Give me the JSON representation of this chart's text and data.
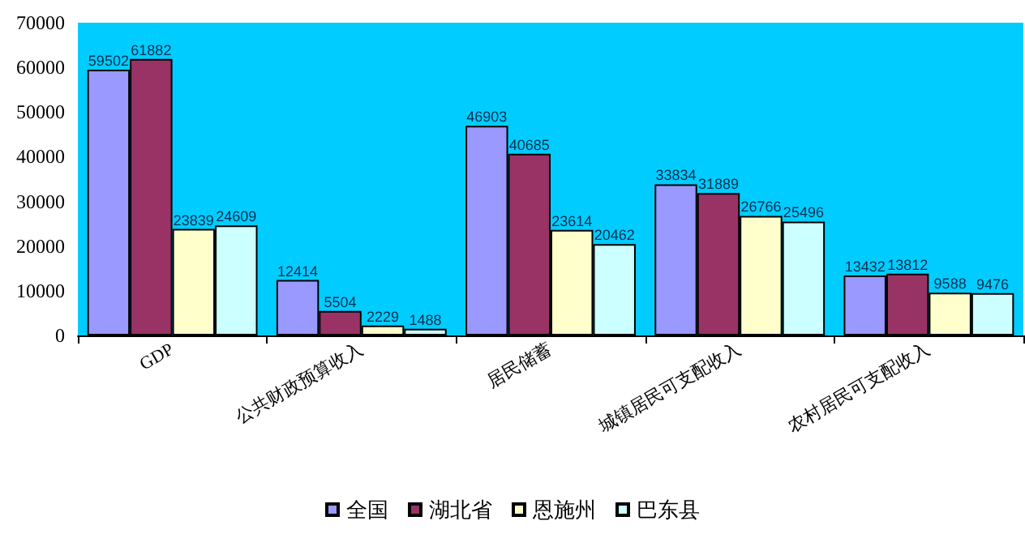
{
  "chart_data": {
    "type": "bar",
    "categories": [
      "GDP",
      "公共财政预算收入",
      "居民储蓄",
      "城镇居民可支配收入",
      "农村居民可支配收入"
    ],
    "series": [
      {
        "name": "全国",
        "color": "#9999ff",
        "values": [
          59502,
          12414,
          46903,
          33834,
          13432
        ]
      },
      {
        "name": "湖北省",
        "color": "#993366",
        "values": [
          61882,
          5504,
          40685,
          31889,
          13812
        ]
      },
      {
        "name": "恩施州",
        "color": "#ffffcc",
        "values": [
          23839,
          2229,
          23614,
          26766,
          9588
        ]
      },
      {
        "name": "巴东县",
        "color": "#ccffff",
        "values": [
          24609,
          1488,
          20462,
          25496,
          9476
        ]
      }
    ],
    "ylim": [
      0,
      70000
    ],
    "yticks": [
      0,
      10000,
      20000,
      30000,
      40000,
      50000,
      60000,
      70000
    ],
    "grid": false,
    "legend": "bottom",
    "data_labels": true
  }
}
